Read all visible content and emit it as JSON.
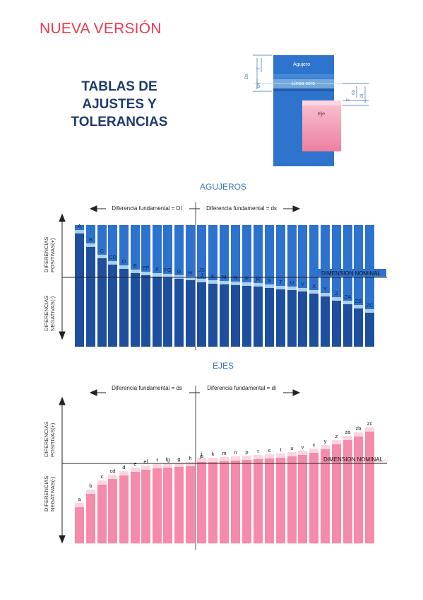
{
  "banner": "NUEVA VERSIÓN",
  "title_lines": [
    "TABLAS DE",
    "AJUSTES Y",
    "TOLERANCIAS"
  ],
  "schematic": {
    "hole_label": "Agujero",
    "zero_label": "Línea cero",
    "shaft_label": "Eje",
    "dim_labels": [
      "Ds",
      "T",
      "Di",
      "ds",
      "T",
      "di"
    ],
    "colors": {
      "hole": "#2f74cc",
      "shaft": "#f3a7bd",
      "zero": "#7fb3e0"
    }
  },
  "holes": {
    "heading": "AGUJEROS",
    "left_arrow_label": "Diferencia fundamental = DI",
    "right_arrow_label": "Diferencia fundamental = ds",
    "positive_label_lines": [
      "DIFERENCIAS",
      "POSITIVAS(+)"
    ],
    "negative_label_lines": [
      "DIFERENCIAS",
      "NEGATIVAS(-)"
    ],
    "zero_line_label": "DIMENSION NOMINAL",
    "letters": [
      "A",
      "B",
      "C",
      "CD",
      "D",
      "E",
      "EF",
      "F",
      "FG",
      "G",
      "H",
      "J",
      "JS",
      "K",
      "M",
      "N",
      "P",
      "R",
      "S",
      "T",
      "U",
      "V",
      "X",
      "Y",
      "Z",
      "ZA",
      "ZB",
      "ZC"
    ],
    "zone_edge_relative": [
      62,
      43,
      27,
      18,
      12,
      6,
      3,
      1,
      0,
      -2,
      -4,
      -7,
      -9,
      -10,
      -11,
      -12,
      -13,
      -15,
      -17,
      -18,
      -20,
      -23,
      -27,
      -33,
      -38,
      -44,
      -50
    ],
    "colors": {
      "bar": "#2e72cf",
      "deep": "#1d4f9e",
      "zero_band": "#a9d0ec"
    }
  },
  "shafts": {
    "heading": "EJES",
    "left_arrow_label": "Diferencia fundamental = ds",
    "right_arrow_label": "Diferencia fundamental = di",
    "positive_label_lines": [
      "DIFERENCIAS",
      "POSITIVAS(+)"
    ],
    "negative_label_lines": [
      "DIFERENCIAS",
      "NEGATIVAS(-)"
    ],
    "zero_line_label": "DIMENSION NOMINAL",
    "letters": [
      "a",
      "b",
      "c",
      "cd",
      "d",
      "e",
      "ef",
      "f",
      "fg",
      "g",
      "h",
      "j",
      "js",
      "k",
      "m",
      "n",
      "p",
      "r",
      "s",
      "t",
      "u",
      "v",
      "x",
      "y",
      "z",
      "za",
      "zb",
      "zc"
    ],
    "zone_edge_relative": [
      -62,
      -43,
      -30,
      -22,
      -17,
      -12,
      -9,
      -7,
      -6,
      -5,
      -4,
      2,
      2,
      3,
      4,
      5,
      6,
      7,
      8,
      10,
      12,
      15,
      20,
      27,
      33,
      38,
      45
    ],
    "colors": {
      "bar": "#f58ba8",
      "light": "#fbd6e0",
      "zero_band": "#fce7ee"
    }
  }
}
